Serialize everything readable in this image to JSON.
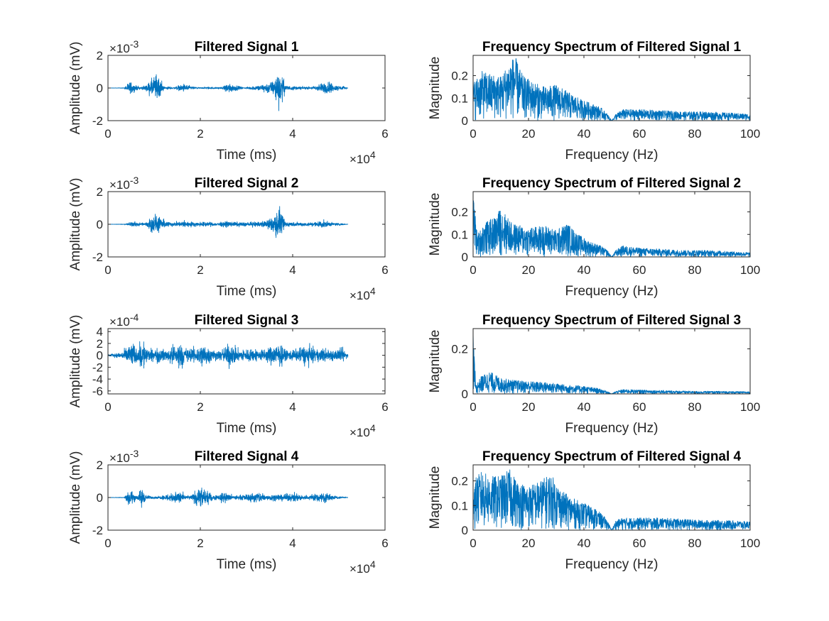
{
  "window": {
    "title": ""
  },
  "colors": {
    "series": "#0072bd",
    "axes": "#262626",
    "background": "#ffffff"
  },
  "chart_data": [
    {
      "type": "line",
      "title": "Filtered Signal 1",
      "xlabel": "Time (ms)",
      "ylabel": "Amplitude (mV)",
      "xlim": [
        0,
        60000
      ],
      "ylim": [
        -0.002,
        0.002
      ],
      "x_multiplier": "×10^4",
      "y_multiplier": "×10^-3",
      "xticks": [
        0,
        2,
        4,
        6
      ],
      "xtick_labels": [
        "0",
        "2",
        "4",
        "6"
      ],
      "yticks": [
        -2,
        0,
        2
      ],
      "ytick_labels": [
        "-2",
        "0",
        "2"
      ],
      "signal_end": 52000,
      "series": [
        {
          "envelope": [
            [
              0,
              1e-05
            ],
            [
              3500,
              3e-05
            ],
            [
              5000,
              0.0008
            ],
            [
              5600,
              0.0004
            ],
            [
              6800,
              0.00012
            ],
            [
              8000,
              0.0002
            ],
            [
              9500,
              0.0009
            ],
            [
              10400,
              0.0014
            ],
            [
              11200,
              0.0012
            ],
            [
              12000,
              0.0002
            ],
            [
              14000,
              8e-05
            ],
            [
              16500,
              0.0004
            ],
            [
              18500,
              0.00012
            ],
            [
              20000,
              6e-05
            ],
            [
              21500,
              0.00012
            ],
            [
              23500,
              8e-05
            ],
            [
              25000,
              0.00015
            ],
            [
              25800,
              0.0005
            ],
            [
              27500,
              0.0003
            ],
            [
              29500,
              5e-05
            ],
            [
              34000,
              0.0004
            ],
            [
              35000,
              0.0006
            ],
            [
              36000,
              0.0007
            ],
            [
              36500,
              0.0018
            ],
            [
              37300,
              0.0016
            ],
            [
              38500,
              0.0003
            ],
            [
              41000,
              0.00015
            ],
            [
              44000,
              0.00012
            ],
            [
              46500,
              0.0005
            ],
            [
              47800,
              0.0007
            ],
            [
              49000,
              0.0003
            ],
            [
              51000,
              0.0002
            ],
            [
              52000,
              1e-05
            ]
          ]
        }
      ]
    },
    {
      "type": "line",
      "title": "Frequency Spectrum of Filtered Signal 1",
      "xlabel": "Frequency (Hz)",
      "ylabel": "Magnitude",
      "xlim": [
        0,
        100
      ],
      "ylim": [
        0,
        0.29
      ],
      "xticks": [
        0,
        20,
        40,
        60,
        80,
        100
      ],
      "xtick_labels": [
        "0",
        "20",
        "40",
        "60",
        "80",
        "100"
      ],
      "yticks": [
        0,
        0.1,
        0.2
      ],
      "ytick_labels": [
        "0",
        "0.1",
        "0.2"
      ],
      "series": [
        {
          "envelope": [
            [
              0,
              0.17
            ],
            [
              3,
              0.22
            ],
            [
              6,
              0.21
            ],
            [
              10,
              0.2
            ],
            [
              13,
              0.26
            ],
            [
              15,
              0.29
            ],
            [
              18,
              0.2
            ],
            [
              22,
              0.17
            ],
            [
              26,
              0.15
            ],
            [
              30,
              0.16
            ],
            [
              34,
              0.13
            ],
            [
              38,
              0.1
            ],
            [
              42,
              0.08
            ],
            [
              46,
              0.06
            ],
            [
              48.5,
              0.03
            ],
            [
              50,
              0.0
            ],
            [
              51.5,
              0.03
            ],
            [
              54,
              0.05
            ],
            [
              60,
              0.05
            ],
            [
              68,
              0.045
            ],
            [
              76,
              0.04
            ],
            [
              84,
              0.04
            ],
            [
              92,
              0.035
            ],
            [
              100,
              0.03
            ]
          ]
        }
      ]
    },
    {
      "type": "line",
      "title": "Filtered Signal 2",
      "xlabel": "Time (ms)",
      "ylabel": "Amplitude (mV)",
      "xlim": [
        0,
        60000
      ],
      "ylim": [
        -0.002,
        0.002
      ],
      "x_multiplier": "×10^4",
      "y_multiplier": "×10^-3",
      "xticks": [
        0,
        2,
        4,
        6
      ],
      "xtick_labels": [
        "0",
        "2",
        "4",
        "6"
      ],
      "yticks": [
        -2,
        0,
        2
      ],
      "ytick_labels": [
        "-2",
        "0",
        "2"
      ],
      "signal_end": 52000,
      "series": [
        {
          "envelope": [
            [
              0,
              1e-05
            ],
            [
              3500,
              3e-05
            ],
            [
              5000,
              0.00025
            ],
            [
              6500,
              0.0002
            ],
            [
              8000,
              0.00015
            ],
            [
              9500,
              0.0008
            ],
            [
              10200,
              0.0011
            ],
            [
              11000,
              0.0009
            ],
            [
              12500,
              0.0003
            ],
            [
              14500,
              0.0002
            ],
            [
              16500,
              0.00035
            ],
            [
              19000,
              0.0002
            ],
            [
              21000,
              0.00025
            ],
            [
              23000,
              0.00015
            ],
            [
              25500,
              0.0003
            ],
            [
              28500,
              0.0002
            ],
            [
              31000,
              0.0002
            ],
            [
              34500,
              0.0004
            ],
            [
              35800,
              0.0009
            ],
            [
              36400,
              0.0016
            ],
            [
              37200,
              0.0014
            ],
            [
              38500,
              0.0003
            ],
            [
              41000,
              0.0002
            ],
            [
              44000,
              0.0002
            ],
            [
              46500,
              0.0004
            ],
            [
              48500,
              0.0002
            ],
            [
              52000,
              1e-05
            ]
          ]
        }
      ]
    },
    {
      "type": "line",
      "title": "Frequency Spectrum of Filtered Signal 2",
      "xlabel": "Frequency (Hz)",
      "ylabel": "Magnitude",
      "xlim": [
        0,
        100
      ],
      "ylim": [
        0,
        0.29
      ],
      "xticks": [
        0,
        20,
        40,
        60,
        80,
        100
      ],
      "xtick_labels": [
        "0",
        "20",
        "40",
        "60",
        "80",
        "100"
      ],
      "yticks": [
        0,
        0.1,
        0.2
      ],
      "ytick_labels": [
        "0",
        "0.1",
        "0.2"
      ],
      "series": [
        {
          "envelope": [
            [
              0,
              0.29
            ],
            [
              1.5,
              0.1
            ],
            [
              4,
              0.15
            ],
            [
              8,
              0.18
            ],
            [
              10,
              0.22
            ],
            [
              14,
              0.15
            ],
            [
              20,
              0.13
            ],
            [
              26,
              0.14
            ],
            [
              30,
              0.12
            ],
            [
              34,
              0.15
            ],
            [
              38,
              0.1
            ],
            [
              42,
              0.07
            ],
            [
              46,
              0.05
            ],
            [
              48.5,
              0.03
            ],
            [
              50,
              0.0
            ],
            [
              51.5,
              0.03
            ],
            [
              54,
              0.05
            ],
            [
              60,
              0.04
            ],
            [
              68,
              0.035
            ],
            [
              76,
              0.03
            ],
            [
              84,
              0.03
            ],
            [
              92,
              0.025
            ],
            [
              100,
              0.02
            ]
          ]
        }
      ]
    },
    {
      "type": "line",
      "title": "Filtered Signal 3",
      "xlabel": "Time (ms)",
      "ylabel": "Amplitude (mV)",
      "xlim": [
        0,
        60000
      ],
      "ylim": [
        -0.00065,
        0.00045
      ],
      "x_multiplier": "×10^4",
      "y_multiplier": "×10^-4",
      "xticks": [
        0,
        2,
        4,
        6
      ],
      "xtick_labels": [
        "0",
        "2",
        "4",
        "6"
      ],
      "yticks": [
        -6,
        -4,
        -2,
        0,
        2,
        4
      ],
      "ytick_labels": [
        "-6",
        "-4",
        "-2",
        "0",
        "2",
        "4"
      ],
      "signal_end": 52000,
      "series": [
        {
          "envelope": [
            [
              0,
              3e-05
            ],
            [
              3000,
              8e-05
            ],
            [
              4500,
              0.0003
            ],
            [
              5200,
              0.00035
            ],
            [
              6500,
              0.0002
            ],
            [
              7500,
              0.00045
            ],
            [
              9000,
              0.00015
            ],
            [
              11000,
              0.0002
            ],
            [
              13000,
              0.00015
            ],
            [
              15000,
              0.0004
            ],
            [
              17000,
              0.0002
            ],
            [
              19000,
              0.0002
            ],
            [
              20500,
              0.00035
            ],
            [
              22000,
              0.0002
            ],
            [
              24000,
              0.00012
            ],
            [
              26500,
              0.00035
            ],
            [
              28500,
              0.00015
            ],
            [
              31000,
              0.0002
            ],
            [
              33000,
              0.00015
            ],
            [
              35000,
              0.00025
            ],
            [
              36800,
              0.00035
            ],
            [
              38500,
              0.00015
            ],
            [
              40500,
              0.00015
            ],
            [
              43000,
              0.0003
            ],
            [
              45000,
              0.00015
            ],
            [
              47000,
              0.0002
            ],
            [
              49000,
              0.00015
            ],
            [
              51000,
              0.0002
            ],
            [
              52000,
              3e-05
            ]
          ]
        }
      ]
    },
    {
      "type": "line",
      "title": "Frequency Spectrum of Filtered Signal 3",
      "xlabel": "Frequency (Hz)",
      "ylabel": "Magnitude",
      "xlim": [
        0,
        100
      ],
      "ylim": [
        0,
        0.29
      ],
      "xticks": [
        0,
        20,
        40,
        60,
        80,
        100
      ],
      "xtick_labels": [
        "0",
        "20",
        "40",
        "60",
        "80",
        "100"
      ],
      "yticks": [
        0,
        0.2
      ],
      "ytick_labels": [
        "0",
        "0.2"
      ],
      "series": [
        {
          "envelope": [
            [
              0,
              0.27
            ],
            [
              1,
              0.04
            ],
            [
              3,
              0.08
            ],
            [
              6,
              0.1
            ],
            [
              10,
              0.07
            ],
            [
              16,
              0.06
            ],
            [
              22,
              0.055
            ],
            [
              28,
              0.05
            ],
            [
              34,
              0.04
            ],
            [
              40,
              0.035
            ],
            [
              45,
              0.025
            ],
            [
              48.5,
              0.012
            ],
            [
              50,
              0.0
            ],
            [
              51.5,
              0.012
            ],
            [
              54,
              0.02
            ],
            [
              60,
              0.018
            ],
            [
              70,
              0.015
            ],
            [
              80,
              0.012
            ],
            [
              90,
              0.012
            ],
            [
              100,
              0.01
            ]
          ]
        }
      ]
    },
    {
      "type": "line",
      "title": "Filtered Signal 4",
      "xlabel": "Time (ms)",
      "ylabel": "Amplitude (mV)",
      "xlim": [
        0,
        60000
      ],
      "ylim": [
        -0.002,
        0.002
      ],
      "x_multiplier": "×10^4",
      "y_multiplier": "×10^-3",
      "xticks": [
        0,
        2,
        4,
        6
      ],
      "xtick_labels": [
        "0",
        "2",
        "4",
        "6"
      ],
      "yticks": [
        -2,
        0,
        2
      ],
      "ytick_labels": [
        "-2",
        "0",
        "2"
      ],
      "signal_end": 52000,
      "series": [
        {
          "envelope": [
            [
              0,
              1e-05
            ],
            [
              3500,
              4e-05
            ],
            [
              4800,
              0.0009
            ],
            [
              5400,
              0.0006
            ],
            [
              6300,
              0.0002
            ],
            [
              7300,
              0.0011
            ],
            [
              8300,
              0.0002
            ],
            [
              11000,
              0.0001
            ],
            [
              15500,
              0.0007
            ],
            [
              16800,
              0.0002
            ],
            [
              18000,
              0.0002
            ],
            [
              20200,
              0.0012
            ],
            [
              21000,
              0.0008
            ],
            [
              23000,
              0.0002
            ],
            [
              25500,
              0.0006
            ],
            [
              27000,
              0.0002
            ],
            [
              30000,
              0.0003
            ],
            [
              32500,
              0.0006
            ],
            [
              34500,
              0.0003
            ],
            [
              37000,
              0.0003
            ],
            [
              40500,
              0.0004
            ],
            [
              42500,
              0.0002
            ],
            [
              44500,
              0.0004
            ],
            [
              47000,
              0.0005
            ],
            [
              49000,
              0.0002
            ],
            [
              52000,
              1e-05
            ]
          ]
        }
      ]
    },
    {
      "type": "line",
      "title": "Frequency Spectrum of Filtered Signal 4",
      "xlabel": "Frequency (Hz)",
      "ylabel": "Magnitude",
      "xlim": [
        0,
        100
      ],
      "ylim": [
        0,
        0.265
      ],
      "xticks": [
        0,
        20,
        40,
        60,
        80,
        100
      ],
      "xtick_labels": [
        "0",
        "20",
        "40",
        "60",
        "80",
        "100"
      ],
      "yticks": [
        0,
        0.1,
        0.2
      ],
      "ytick_labels": [
        "0",
        "0.1",
        "0.2"
      ],
      "series": [
        {
          "envelope": [
            [
              0,
              0.2
            ],
            [
              3,
              0.24
            ],
            [
              6,
              0.22
            ],
            [
              10,
              0.22
            ],
            [
              13,
              0.25
            ],
            [
              16,
              0.2
            ],
            [
              20,
              0.18
            ],
            [
              24,
              0.2
            ],
            [
              28,
              0.23
            ],
            [
              32,
              0.16
            ],
            [
              36,
              0.13
            ],
            [
              40,
              0.11
            ],
            [
              44,
              0.09
            ],
            [
              47,
              0.06
            ],
            [
              48.5,
              0.04
            ],
            [
              50,
              0.0
            ],
            [
              51.5,
              0.04
            ],
            [
              54,
              0.05
            ],
            [
              60,
              0.05
            ],
            [
              68,
              0.05
            ],
            [
              76,
              0.045
            ],
            [
              84,
              0.04
            ],
            [
              92,
              0.04
            ],
            [
              100,
              0.035
            ]
          ]
        }
      ]
    }
  ]
}
